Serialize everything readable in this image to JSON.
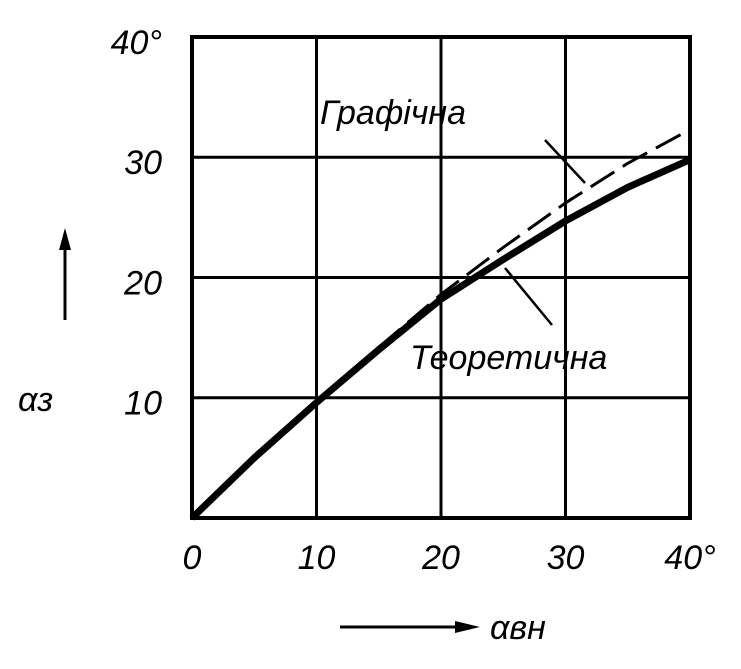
{
  "chart_data": {
    "type": "line",
    "x": [
      0,
      5,
      10,
      15,
      20,
      25,
      30,
      35,
      40
    ],
    "series": [
      {
        "name": "Теоретична",
        "color": "#000000",
        "dash": false,
        "values": [
          0,
          5,
          9.6,
          14,
          18.2,
          21.5,
          24.7,
          27.5,
          29.8
        ]
      },
      {
        "name": "Графічна",
        "color": "#000000",
        "dash": true,
        "values": [
          null,
          null,
          null,
          14.2,
          18.6,
          22.5,
          26.2,
          29.5,
          32.3
        ]
      }
    ],
    "xlim": [
      0,
      40
    ],
    "ylim": [
      0,
      40
    ],
    "xticks": [
      0,
      10,
      20,
      30,
      {
        "value": 40,
        "label": "40°"
      }
    ],
    "yticks": [
      10,
      20,
      30,
      {
        "value": 40,
        "label": "40°"
      }
    ],
    "x_label": "αвн",
    "y_label": "αз",
    "grid": true
  }
}
